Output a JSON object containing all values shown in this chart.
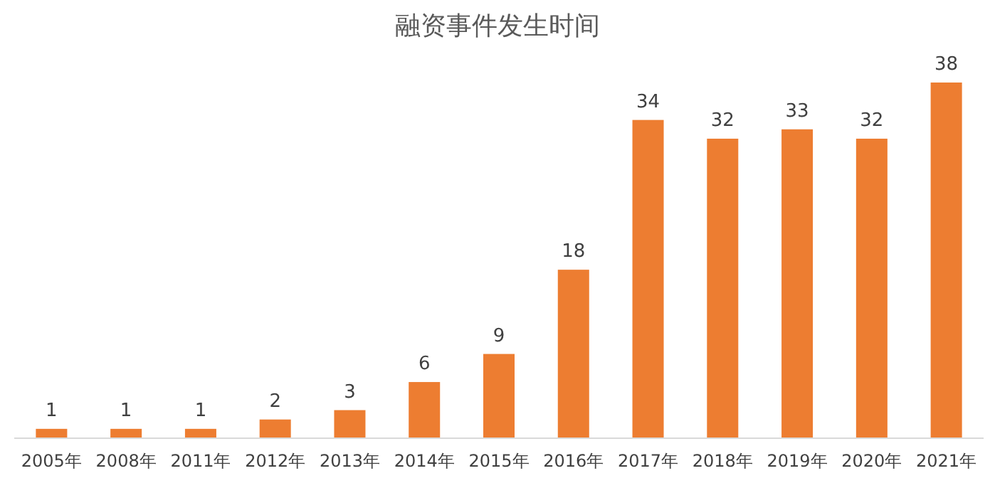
{
  "chart_data": {
    "type": "bar",
    "title": "融资事件发生时间",
    "categories": [
      "2005年",
      "2008年",
      "2011年",
      "2012年",
      "2013年",
      "2014年",
      "2015年",
      "2016年",
      "2017年",
      "2018年",
      "2019年",
      "2020年",
      "2021年"
    ],
    "values": [
      1,
      1,
      1,
      2,
      3,
      6,
      9,
      18,
      34,
      32,
      33,
      32,
      38
    ],
    "color": "#ed7d31",
    "data_labels": true
  }
}
